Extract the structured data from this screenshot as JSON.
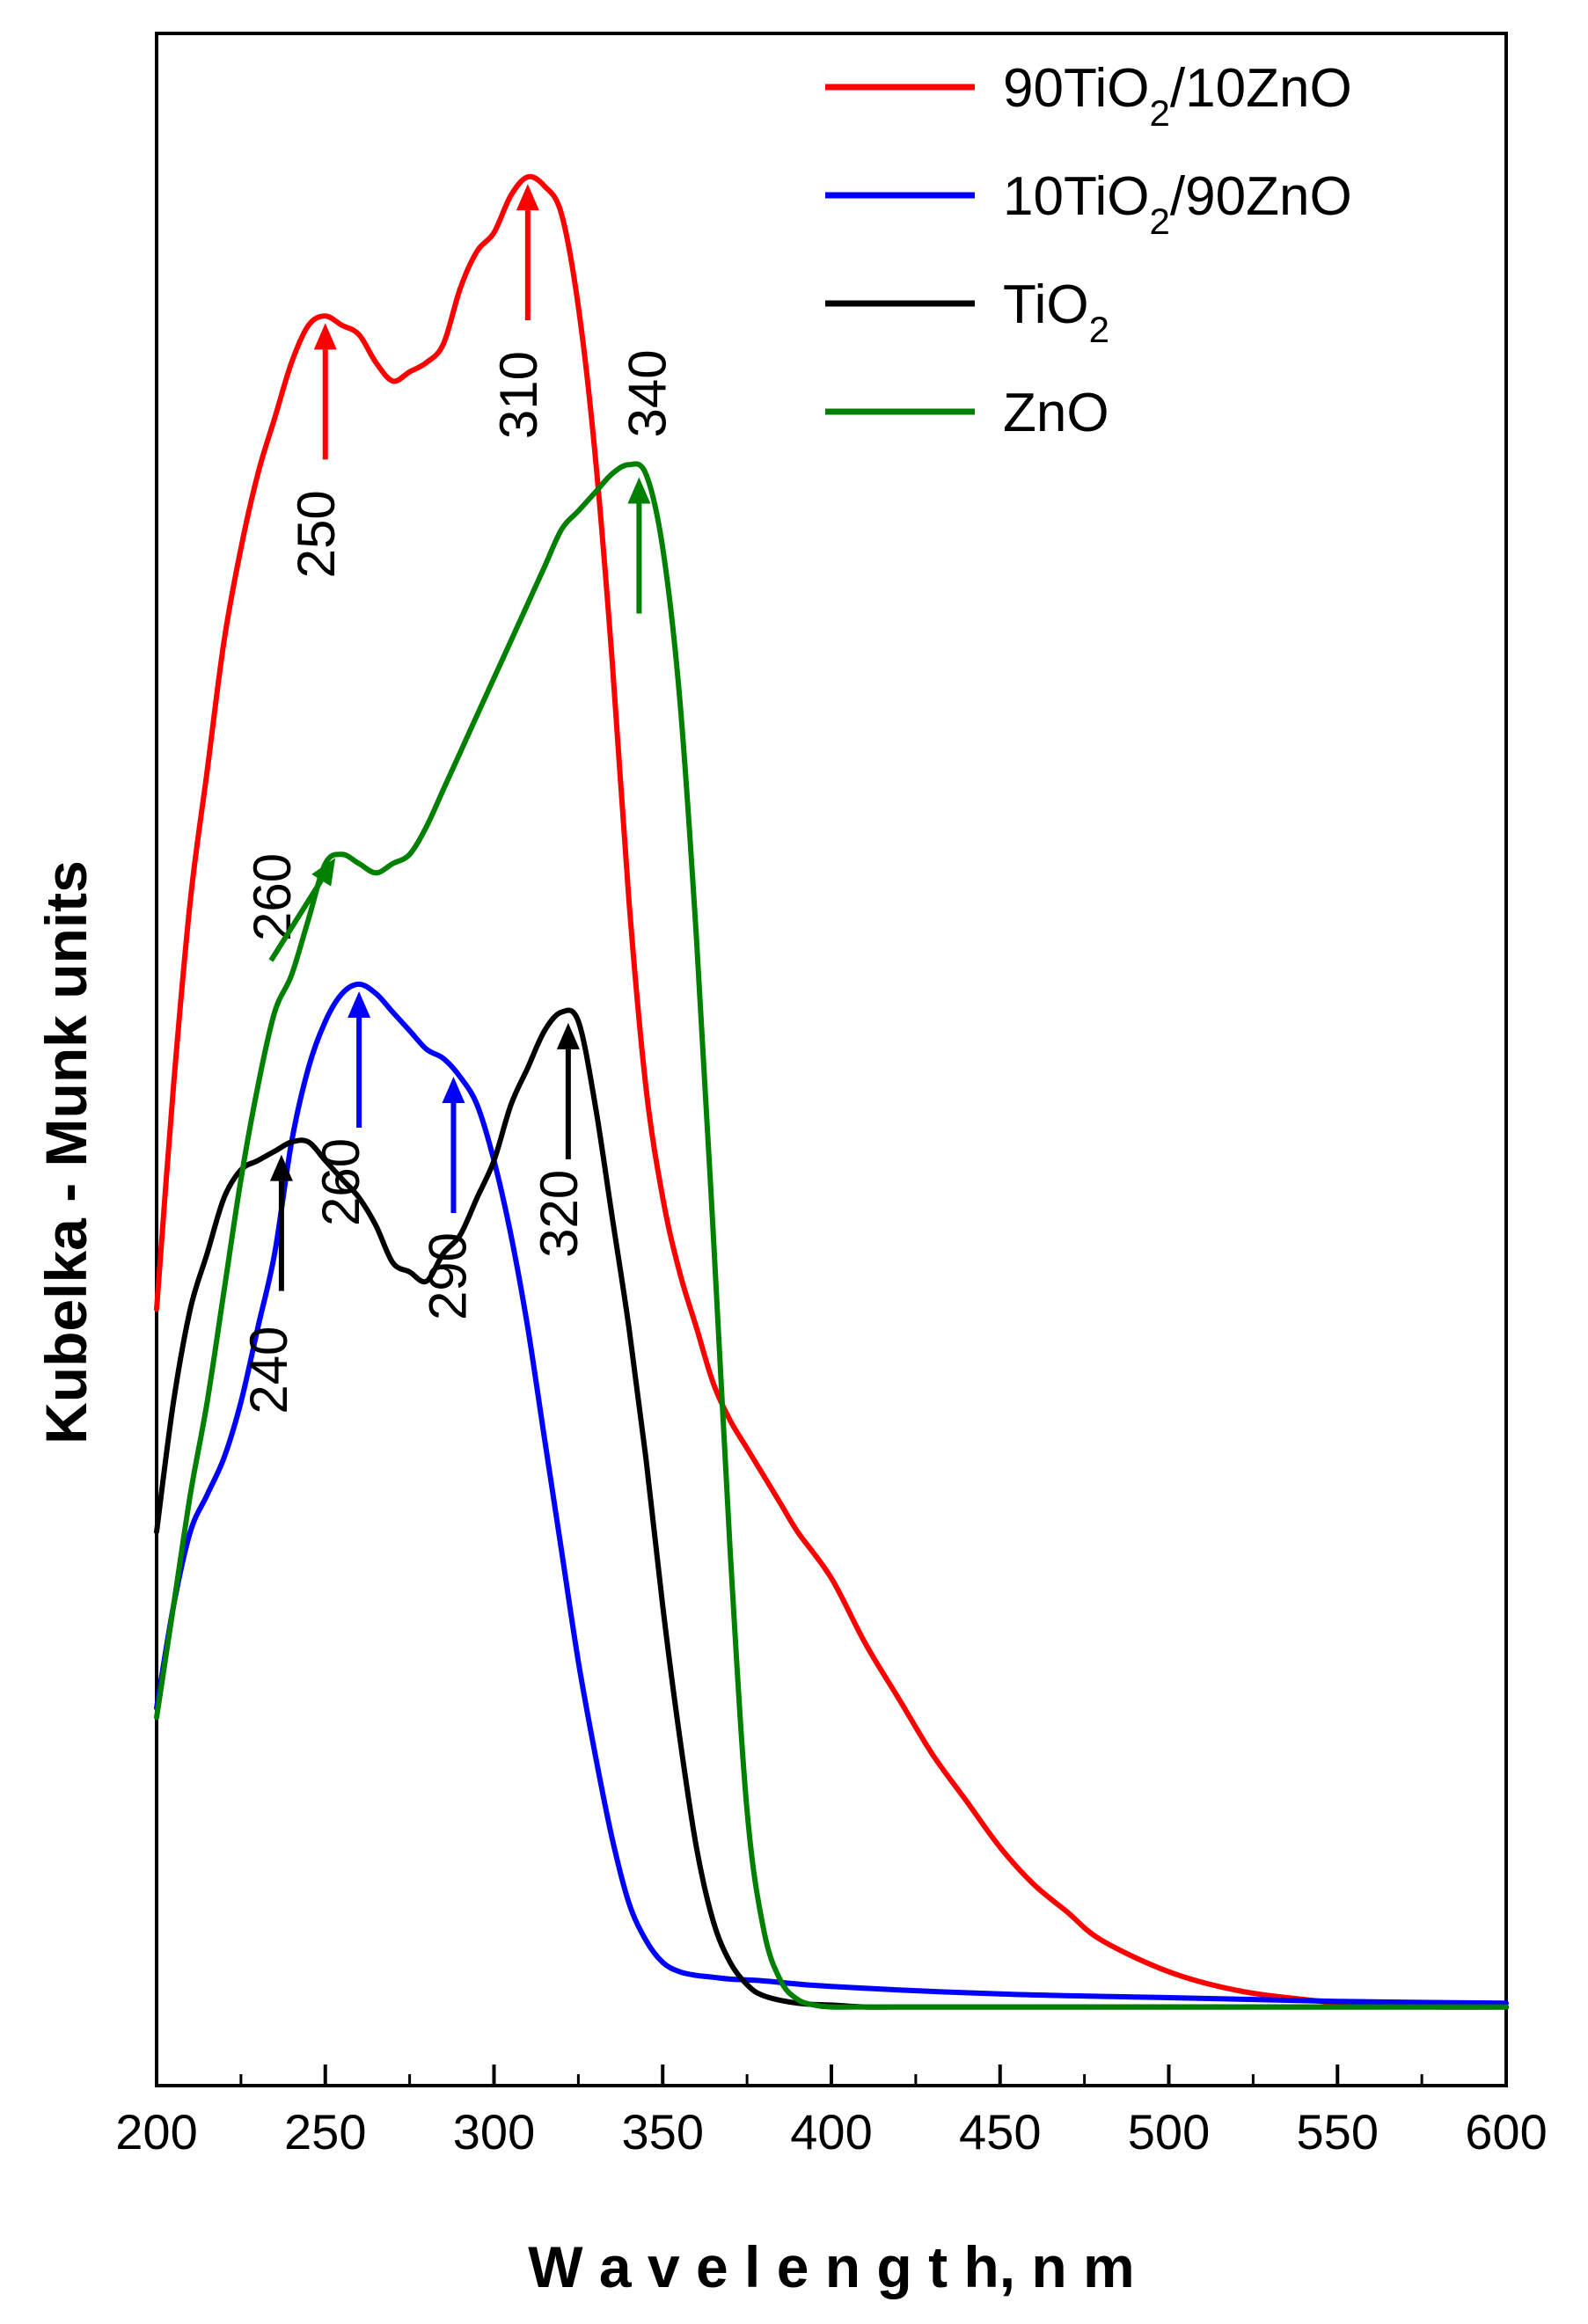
{
  "chart_data": {
    "type": "line",
    "title": "",
    "xlabel": "W a v e l e n g t h,  n m",
    "ylabel": "Kubelka - Munk units",
    "xlim": [
      200,
      600
    ],
    "ylim": [
      0,
      1
    ],
    "xticks": [
      "200",
      "250",
      "300",
      "350",
      "400",
      "450",
      "500",
      "550",
      "600"
    ],
    "yticks_shown": false,
    "legend_position": "top-right",
    "legend": [
      {
        "series": "90TiO2/10ZnO",
        "pre": "90TiO",
        "sub": "2",
        "post": "/10ZnO"
      },
      {
        "series": "10TiO2/90ZnO",
        "pre": "10TiO",
        "sub": "2",
        "post": "/90ZnO"
      },
      {
        "series": "TiO2",
        "pre": "TiO",
        "sub": "2",
        "post": ""
      },
      {
        "series": "ZnO",
        "pre": "ZnO",
        "sub": "",
        "post": ""
      }
    ],
    "series": [
      {
        "name": "90TiO2/10ZnO",
        "color": "#ff0000",
        "x": [
          200,
          205,
          210,
          215,
          220,
          225,
          230,
          235,
          240,
          245,
          250,
          255,
          260,
          265,
          270,
          275,
          280,
          285,
          290,
          295,
          300,
          305,
          310,
          315,
          320,
          325,
          330,
          335,
          340,
          345,
          350,
          355,
          360,
          365,
          370,
          375,
          380,
          385,
          390,
          400,
          410,
          420,
          430,
          440,
          450,
          460,
          470,
          480,
          500,
          520,
          540,
          560,
          580,
          600
        ],
        "y": [
          0.38,
          0.5,
          0.6,
          0.67,
          0.74,
          0.79,
          0.83,
          0.86,
          0.89,
          0.91,
          0.915,
          0.91,
          0.905,
          0.89,
          0.88,
          0.885,
          0.89,
          0.9,
          0.93,
          0.95,
          0.96,
          0.98,
          0.99,
          0.985,
          0.97,
          0.92,
          0.84,
          0.73,
          0.6,
          0.5,
          0.44,
          0.4,
          0.37,
          0.34,
          0.32,
          0.305,
          0.29,
          0.275,
          0.26,
          0.235,
          0.2,
          0.17,
          0.14,
          0.115,
          0.09,
          0.07,
          0.055,
          0.04,
          0.023,
          0.013,
          0.008,
          0.005,
          0.004,
          0.004
        ]
      },
      {
        "name": "10TiO2/90ZnO",
        "color": "#0000ff",
        "x": [
          200,
          205,
          210,
          215,
          220,
          225,
          230,
          235,
          240,
          245,
          250,
          255,
          260,
          265,
          270,
          275,
          280,
          285,
          290,
          295,
          300,
          305,
          310,
          315,
          320,
          325,
          330,
          335,
          340,
          345,
          350,
          355,
          360,
          365,
          370,
          380,
          400,
          450,
          500,
          550,
          600
        ],
        "y": [
          0.165,
          0.22,
          0.26,
          0.28,
          0.3,
          0.33,
          0.37,
          0.41,
          0.47,
          0.51,
          0.535,
          0.55,
          0.555,
          0.55,
          0.54,
          0.53,
          0.52,
          0.515,
          0.505,
          0.49,
          0.46,
          0.42,
          0.37,
          0.31,
          0.25,
          0.19,
          0.14,
          0.095,
          0.06,
          0.04,
          0.028,
          0.023,
          0.021,
          0.02,
          0.019,
          0.018,
          0.015,
          0.011,
          0.009,
          0.007,
          0.006
        ]
      },
      {
        "name": "TiO2",
        "color": "#000000",
        "x": [
          200,
          205,
          210,
          215,
          220,
          225,
          230,
          235,
          240,
          245,
          250,
          255,
          260,
          265,
          270,
          275,
          280,
          285,
          290,
          295,
          300,
          305,
          310,
          315,
          320,
          325,
          330,
          335,
          340,
          345,
          350,
          355,
          360,
          365,
          370,
          375,
          380,
          390,
          400,
          410,
          420,
          450,
          500,
          550,
          600
        ],
        "y": [
          0.26,
          0.33,
          0.38,
          0.41,
          0.44,
          0.455,
          0.46,
          0.465,
          0.47,
          0.47,
          0.46,
          0.45,
          0.44,
          0.425,
          0.405,
          0.4,
          0.395,
          0.41,
          0.42,
          0.44,
          0.46,
          0.49,
          0.51,
          0.53,
          0.54,
          0.535,
          0.49,
          0.43,
          0.37,
          0.3,
          0.22,
          0.15,
          0.09,
          0.05,
          0.028,
          0.016,
          0.01,
          0.006,
          0.005,
          0.004,
          0.004,
          0.004,
          0.004,
          0.004,
          0.004
        ]
      },
      {
        "name": "ZnO",
        "color": "#008000",
        "x": [
          200,
          205,
          210,
          215,
          220,
          225,
          230,
          235,
          240,
          245,
          250,
          255,
          260,
          265,
          270,
          275,
          280,
          285,
          290,
          295,
          300,
          305,
          310,
          315,
          320,
          325,
          330,
          335,
          340,
          345,
          350,
          355,
          360,
          365,
          370,
          375,
          380,
          385,
          390,
          395,
          400,
          410,
          420,
          450,
          500,
          550,
          600
        ],
        "y": [
          0.16,
          0.22,
          0.28,
          0.33,
          0.39,
          0.45,
          0.5,
          0.54,
          0.56,
          0.59,
          0.62,
          0.625,
          0.62,
          0.615,
          0.62,
          0.625,
          0.64,
          0.66,
          0.68,
          0.7,
          0.72,
          0.74,
          0.76,
          0.78,
          0.8,
          0.81,
          0.82,
          0.83,
          0.835,
          0.83,
          0.79,
          0.71,
          0.58,
          0.42,
          0.25,
          0.11,
          0.045,
          0.018,
          0.008,
          0.005,
          0.004,
          0.004,
          0.004,
          0.004,
          0.004,
          0.004,
          0.004
        ]
      }
    ],
    "annotations": [
      {
        "label": "250",
        "color": "#ff0000",
        "series": "90TiO2/10ZnO",
        "x": 250,
        "direction": "up"
      },
      {
        "label": "310",
        "color": "#ff0000",
        "series": "90TiO2/10ZnO",
        "x": 310,
        "direction": "up"
      },
      {
        "label": "340",
        "color": "#008000",
        "series": "ZnO",
        "x": 343,
        "direction": "up"
      },
      {
        "label": "260",
        "color": "#008000",
        "series": "ZnO",
        "x": 254,
        "direction": "diagonal"
      },
      {
        "label": "260",
        "color": "#0000ff",
        "series": "10TiO2/90ZnO",
        "x": 260,
        "direction": "up"
      },
      {
        "label": "290",
        "color": "#0000ff",
        "series": "10TiO2/90ZnO",
        "x": 288,
        "direction": "up"
      },
      {
        "label": "240",
        "color": "#000000",
        "series": "TiO2",
        "x": 237,
        "direction": "up"
      },
      {
        "label": "320",
        "color": "#000000",
        "series": "TiO2",
        "x": 322,
        "direction": "up"
      }
    ]
  }
}
